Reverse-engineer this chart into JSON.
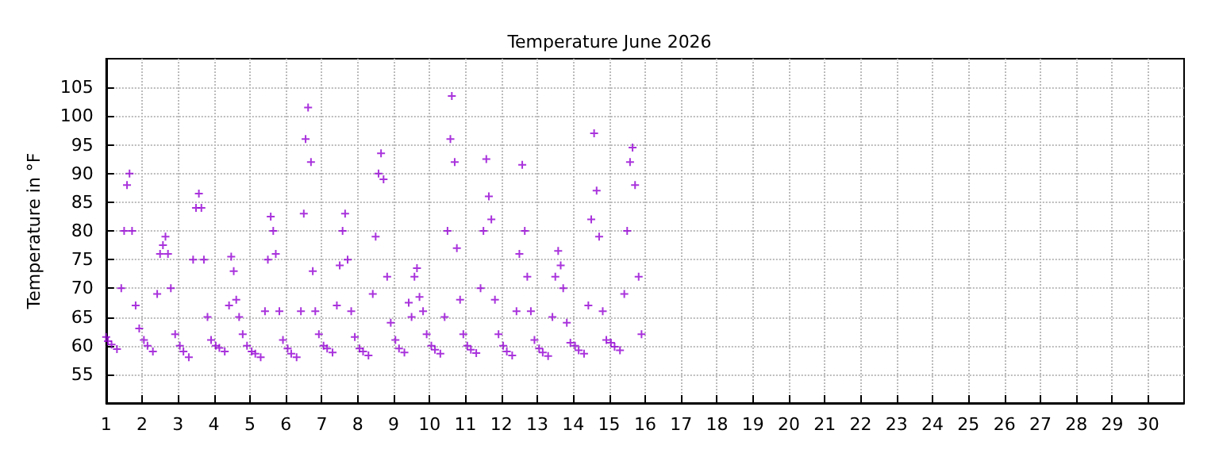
{
  "chart_data": {
    "type": "scatter",
    "title": "Temperature June 2026",
    "ylabel": "Temperature in °F",
    "xlim": [
      1,
      31
    ],
    "xticks": [
      1,
      2,
      3,
      4,
      5,
      6,
      7,
      8,
      9,
      10,
      11,
      12,
      13,
      14,
      15,
      16,
      17,
      18,
      19,
      20,
      21,
      22,
      23,
      24,
      25,
      26,
      27,
      28,
      29,
      30
    ],
    "ylim": [
      50,
      110
    ],
    "yticks": [
      55,
      60,
      65,
      70,
      75,
      80,
      85,
      90,
      95,
      100,
      105
    ],
    "grid": true,
    "marker": "cross",
    "series": [
      {
        "color": "#9400d3",
        "x": [
          1.0,
          1.05,
          1.15,
          1.3,
          1.42,
          1.5,
          1.58,
          1.65,
          1.72,
          1.82,
          1.92,
          2.05,
          2.15,
          2.3,
          2.42,
          2.5,
          2.58,
          2.65,
          2.72,
          2.8,
          2.92,
          3.05,
          3.15,
          3.3,
          3.42,
          3.5,
          3.58,
          3.65,
          3.72,
          3.82,
          3.92,
          4.05,
          4.15,
          4.3,
          4.42,
          4.48,
          4.55,
          4.62,
          4.7,
          4.8,
          4.92,
          5.05,
          5.15,
          5.3,
          5.42,
          5.5,
          5.58,
          5.65,
          5.72,
          5.82,
          5.92,
          6.05,
          6.15,
          6.3,
          6.42,
          6.5,
          6.55,
          6.62,
          6.7,
          6.75,
          6.82,
          6.92,
          7.05,
          7.15,
          7.3,
          7.42,
          7.5,
          7.58,
          7.65,
          7.72,
          7.82,
          7.92,
          8.05,
          8.15,
          8.3,
          8.42,
          8.5,
          8.58,
          8.65,
          8.72,
          8.82,
          8.92,
          9.05,
          9.15,
          9.3,
          9.42,
          9.5,
          9.58,
          9.65,
          9.72,
          9.82,
          9.92,
          10.05,
          10.15,
          10.3,
          10.42,
          10.5,
          10.58,
          10.62,
          10.7,
          10.76,
          10.85,
          10.94,
          11.05,
          11.15,
          11.3,
          11.42,
          11.5,
          11.58,
          11.65,
          11.72,
          11.82,
          11.92,
          12.05,
          12.15,
          12.3,
          12.42,
          12.5,
          12.58,
          12.65,
          12.72,
          12.82,
          12.92,
          13.05,
          13.15,
          13.3,
          13.42,
          13.5,
          13.58,
          13.65,
          13.72,
          13.82,
          13.92,
          14.05,
          14.15,
          14.3,
          14.42,
          14.5,
          14.58,
          14.65,
          14.72,
          14.82,
          14.92,
          15.05,
          15.15,
          15.3,
          15.42,
          15.5,
          15.58,
          15.65,
          15.72,
          15.82,
          15.9
        ],
        "values": [
          61.5,
          60.8,
          60.2,
          59.4,
          70,
          80,
          88,
          90,
          80,
          67,
          63,
          61,
          60,
          59,
          69,
          76,
          77.5,
          79,
          76,
          70,
          62,
          60,
          59,
          58,
          75,
          84,
          86.5,
          84,
          75,
          65,
          61,
          60,
          59.6,
          59,
          67,
          75.5,
          73,
          68,
          65,
          62,
          60,
          59,
          58.6,
          58,
          66,
          75,
          82.5,
          80,
          76,
          66,
          61,
          59.5,
          58.6,
          58,
          66,
          83,
          96,
          101.5,
          92,
          73,
          66,
          62,
          60,
          59.5,
          58.8,
          67,
          74,
          80,
          83,
          75,
          66,
          61.5,
          59.5,
          59,
          58.3,
          69,
          79,
          90,
          93.5,
          89,
          72,
          64,
          61,
          59.5,
          58.8,
          67.5,
          65,
          72,
          73.5,
          68.5,
          66,
          62,
          60,
          59.3,
          58.6,
          65,
          80,
          96,
          103.5,
          92,
          77,
          68,
          62,
          60,
          59.3,
          58.7,
          70,
          80,
          92.5,
          86,
          82,
          68,
          62,
          60,
          59,
          58.3,
          66,
          76,
          91.5,
          80,
          72,
          66,
          61,
          59.5,
          58.8,
          58.2,
          65,
          72,
          76.5,
          74,
          70,
          64,
          60.5,
          60,
          59.2,
          58.6,
          67,
          82,
          97,
          87,
          79,
          66,
          61,
          60.5,
          59.8,
          59.2,
          69,
          80,
          92,
          94.5,
          88,
          72,
          62
        ]
      }
    ]
  }
}
